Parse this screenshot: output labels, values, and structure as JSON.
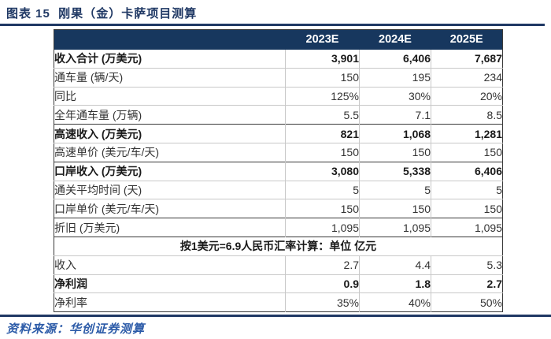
{
  "figure": {
    "caption": "图表 15  刚果（金）卡萨项目测算",
    "source": "资料来源：华创证券测算"
  },
  "colors": {
    "navy_accent": "#1F3864",
    "table_header_bg": "#17375E",
    "header_text": "#FFFFFF",
    "source_text_blue": "#2C5BA8",
    "border_dark": "#3A3A3A",
    "border_light": "#C8C8C8",
    "body_text": "#333333"
  },
  "table": {
    "columns": [
      "",
      "2023E",
      "2024E",
      "2025E"
    ],
    "rows": [
      {
        "type": "data",
        "label": "收入合计 (万美元)",
        "values": [
          "3,901",
          "6,406",
          "7,687"
        ],
        "bold": true,
        "divider": "none"
      },
      {
        "type": "data",
        "label": "通车量 (辆/天)",
        "values": [
          "150",
          "195",
          "234"
        ],
        "bold": false,
        "divider": "light"
      },
      {
        "type": "data",
        "label": "同比",
        "values": [
          "125%",
          "30%",
          "20%"
        ],
        "bold": false,
        "divider": "light"
      },
      {
        "type": "data",
        "label": "全年通车量 (万辆)",
        "values": [
          "5.5",
          "7.1",
          "8.5"
        ],
        "bold": false,
        "divider": "light"
      },
      {
        "type": "data",
        "label": "高速收入 (万美元)",
        "values": [
          "821",
          "1,068",
          "1,281"
        ],
        "bold": true,
        "divider": "dark"
      },
      {
        "type": "data",
        "label": "高速单价 (美元/车/天)",
        "values": [
          "150",
          "150",
          "150"
        ],
        "bold": false,
        "divider": "light"
      },
      {
        "type": "data",
        "label": "口岸收入 (万美元)",
        "values": [
          "3,080",
          "5,338",
          "6,406"
        ],
        "bold": true,
        "divider": "dark"
      },
      {
        "type": "data",
        "label": "通关平均时间 (天)",
        "values": [
          "5",
          "5",
          "5"
        ],
        "bold": false,
        "divider": "light"
      },
      {
        "type": "data",
        "label": "口岸单价 (美元/车/天)",
        "values": [
          "150",
          "150",
          "150"
        ],
        "bold": false,
        "divider": "light"
      },
      {
        "type": "data",
        "label": "折旧 (万美元)",
        "values": [
          "1,095",
          "1,095",
          "1,095"
        ],
        "bold": false,
        "divider": "dark"
      },
      {
        "type": "band",
        "label": "按1美元=6.9人民币汇率计算：单位 亿元",
        "bold": true,
        "divider": "dark"
      },
      {
        "type": "data",
        "label": "收入",
        "values": [
          "2.7",
          "4.4",
          "5.3"
        ],
        "bold": false,
        "divider": "light"
      },
      {
        "type": "data",
        "label": "净利润",
        "values": [
          "0.9",
          "1.8",
          "2.7"
        ],
        "bold": true,
        "divider": "light"
      },
      {
        "type": "data",
        "label": "净利率",
        "values": [
          "35%",
          "40%",
          "50%"
        ],
        "bold": false,
        "divider": "light"
      }
    ]
  }
}
